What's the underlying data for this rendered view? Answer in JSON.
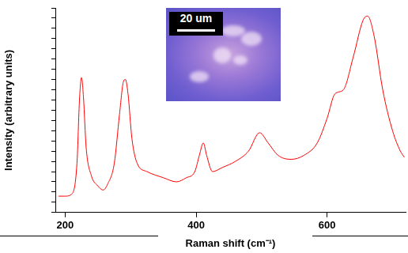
{
  "chart_data": {
    "type": "line",
    "x_label": "Raman shift (cm⁻¹)",
    "y_label": "Intensity (arbitrary units)",
    "annotations": [
      {
        "text": "20 um"
      }
    ],
    "x": [
      190,
      200,
      210,
      218,
      222,
      225,
      228,
      232,
      240,
      250,
      258,
      265,
      275,
      283,
      289,
      292,
      296,
      302,
      310,
      325,
      350,
      370,
      385,
      398,
      405,
      411,
      416,
      425,
      440,
      460,
      480,
      497,
      510,
      525,
      545,
      565,
      585,
      600,
      612,
      625,
      640,
      655,
      662,
      672,
      685,
      700,
      712,
      718
    ],
    "values": [
      8,
      8,
      9,
      24,
      56,
      66,
      56,
      32,
      18,
      13,
      11,
      14,
      24,
      48,
      64,
      65,
      58,
      36,
      24,
      20,
      17,
      15,
      17,
      20,
      28,
      34,
      28,
      20,
      22,
      25,
      30,
      39,
      34,
      28,
      26,
      28,
      34,
      46,
      58,
      60,
      76,
      94,
      96,
      86,
      60,
      40,
      30,
      27
    ],
    "color": "#ff0000",
    "xlim": [
      185,
      720
    ],
    "xticks": [
      200,
      400,
      600
    ],
    "ylim": [
      0,
      100
    ],
    "yticks": [
      0,
      5,
      10,
      15,
      20,
      25,
      30,
      35,
      40,
      45,
      50,
      55,
      60,
      65,
      70,
      75,
      80,
      85,
      90,
      95,
      100
    ],
    "tick_labels": "x",
    "grid": false
  }
}
